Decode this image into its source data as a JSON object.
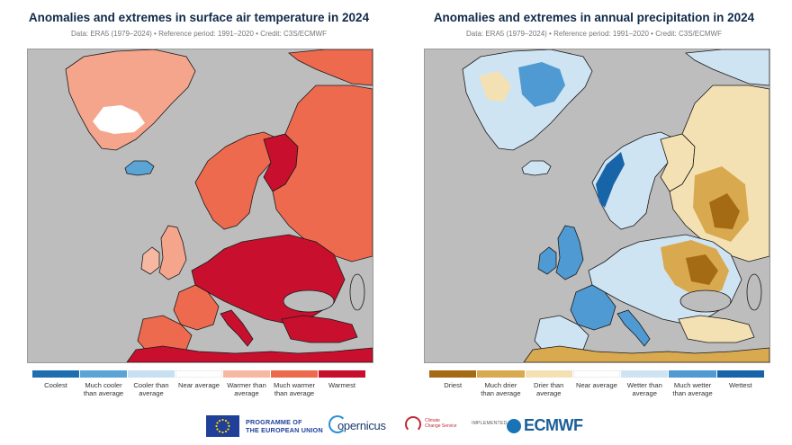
{
  "left_map": {
    "title": "Anomalies and extremes in surface air temperature in 2024",
    "subtitle": "Data: ERA5 (1979–2024) • Reference period: 1991–2020 • Credit: C3S/ECMWF",
    "legend": [
      {
        "label": "Coolest",
        "color": "#1f6fb0"
      },
      {
        "label": "Much cooler than average",
        "color": "#5aa5d6"
      },
      {
        "label": "Cooler than average",
        "color": "#c7e0f1"
      },
      {
        "label": "Near average",
        "color": "#ffffff"
      },
      {
        "label": "Warmer than average",
        "color": "#f6b8a0"
      },
      {
        "label": "Much warmer than average",
        "color": "#ee6a4f"
      },
      {
        "label": "Warmest",
        "color": "#c8102e"
      }
    ]
  },
  "right_map": {
    "title": "Anomalies and extremes in annual precipitation in 2024",
    "subtitle": "Data: ERA5 (1979–2024) • Reference period: 1991–2020 • Credit: C3S/ECMWF",
    "legend": [
      {
        "label": "Driest",
        "color": "#a46a14"
      },
      {
        "label": "Much drier than average",
        "color": "#d9a94f"
      },
      {
        "label": "Drier than average",
        "color": "#f4e1b3"
      },
      {
        "label": "Near average",
        "color": "#ffffff"
      },
      {
        "label": "Wetter than average",
        "color": "#cfe4f2"
      },
      {
        "label": "Much wetter than average",
        "color": "#4f9ad2"
      },
      {
        "label": "Wettest",
        "color": "#1764a8"
      }
    ]
  },
  "colors": {
    "ocean": "#bdbdbd",
    "coast": "#1a1a1a"
  },
  "footer": {
    "eu_line1": "PROGRAMME OF",
    "eu_line2": "THE EUROPEAN UNION",
    "copernicus": "opernicus",
    "c3s_line1": "Climate",
    "c3s_line2": "Change Service",
    "ecmwf_prefix": "IMPLEMENTED BY",
    "ecmwf": "ECMWF"
  }
}
